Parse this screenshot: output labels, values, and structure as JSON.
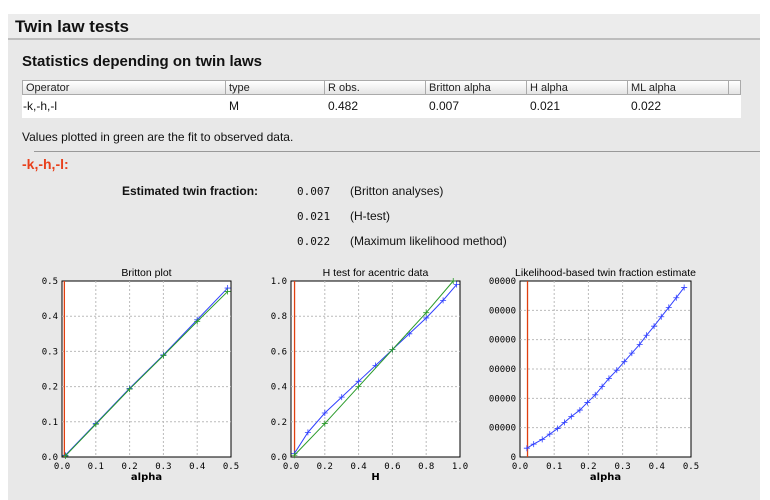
{
  "title": "Twin law tests",
  "subtitle": "Statistics depending on twin laws",
  "table": {
    "headers": [
      "Operator",
      "type",
      "R obs.",
      "Britton alpha",
      "H alpha",
      "ML alpha"
    ],
    "rows": [
      [
        "-k,-h,-l",
        "M",
        "0.482",
        "0.007",
        "0.021",
        "0.022"
      ]
    ]
  },
  "note": "Values plotted in green are the fit to observed data.",
  "operator_heading": "-k,-h,-l:",
  "estimate": {
    "label": "Estimated twin fraction:",
    "items": [
      {
        "value": "0.007",
        "method": "(Britton analyses)"
      },
      {
        "value": "0.021",
        "method": "(H-test)"
      },
      {
        "value": "0.022",
        "method": "(Maximum likelihood method)"
      }
    ]
  },
  "colors": {
    "observed": "#3040ff",
    "fit": "#2a9a2a",
    "estimate": "#e04010",
    "operator": "#e8401c"
  },
  "chart_data": [
    {
      "type": "line",
      "title": "Britton plot",
      "xlabel": "alpha",
      "ylabel": "",
      "xlim": [
        0,
        0.5
      ],
      "ylim": [
        0,
        0.5
      ],
      "grid": true,
      "xticks": [
        "0.0",
        "0.1",
        "0.2",
        "0.3",
        "0.4",
        "0.5"
      ],
      "yticks": [
        "0.0",
        "0.1",
        "0.2",
        "0.3",
        "0.4",
        "0.5"
      ],
      "vline": 0.007,
      "series": [
        {
          "color": "#3040ff",
          "x": [
            0.01,
            0.1,
            0.2,
            0.3,
            0.4,
            0.49
          ],
          "y": [
            0.005,
            0.095,
            0.195,
            0.29,
            0.39,
            0.48
          ]
        },
        {
          "color": "#2a9a2a",
          "x": [
            0.01,
            0.1,
            0.2,
            0.3,
            0.4,
            0.49
          ],
          "y": [
            0.003,
            0.093,
            0.193,
            0.288,
            0.385,
            0.47
          ]
        }
      ]
    },
    {
      "type": "line",
      "title": "H test for acentric data",
      "xlabel": "H",
      "ylabel": "",
      "xlim": [
        0,
        1
      ],
      "ylim": [
        0,
        1
      ],
      "grid": true,
      "xticks": [
        "0.0",
        "0.2",
        "0.4",
        "0.6",
        "0.8",
        "1.0"
      ],
      "yticks": [
        "0.0",
        "0.2",
        "0.4",
        "0.6",
        "0.8",
        "1.0"
      ],
      "vline": 0.021,
      "series": [
        {
          "color": "#3040ff",
          "x": [
            0.02,
            0.1,
            0.2,
            0.3,
            0.4,
            0.5,
            0.6,
            0.7,
            0.8,
            0.9,
            0.98
          ],
          "y": [
            0.02,
            0.14,
            0.25,
            0.34,
            0.43,
            0.52,
            0.61,
            0.7,
            0.79,
            0.89,
            0.98
          ]
        },
        {
          "color": "#2a9a2a",
          "x": [
            0.02,
            0.2,
            0.4,
            0.6,
            0.8,
            0.96
          ],
          "y": [
            0.01,
            0.19,
            0.4,
            0.61,
            0.82,
            1.0
          ]
        }
      ]
    },
    {
      "type": "line",
      "title": "Likelihood-based twin fraction estimate",
      "xlabel": "alpha",
      "ylabel": "",
      "xlim": [
        0,
        0.5
      ],
      "ylim": [
        0,
        600000
      ],
      "grid": true,
      "xticks": [
        "0.0",
        "0.1",
        "0.2",
        "0.3",
        "0.4",
        "0.5"
      ],
      "yticks": [
        "0",
        "00000",
        "00000",
        "00000",
        "00000",
        "00000",
        "00000"
      ],
      "vline": 0.022,
      "series": [
        {
          "color": "#3040ff",
          "x": [
            0.02,
            0.04,
            0.065,
            0.087,
            0.11,
            0.13,
            0.15,
            0.175,
            0.197,
            0.22,
            0.24,
            0.26,
            0.283,
            0.305,
            0.327,
            0.35,
            0.37,
            0.392,
            0.413,
            0.435,
            0.457,
            0.48
          ],
          "y": [
            30000,
            44000,
            60000,
            78000,
            97000,
            118000,
            138000,
            160000,
            186000,
            212000,
            240000,
            268000,
            296000,
            325000,
            354000,
            384000,
            415000,
            446000,
            478000,
            510000,
            543000,
            578000
          ]
        }
      ]
    }
  ]
}
